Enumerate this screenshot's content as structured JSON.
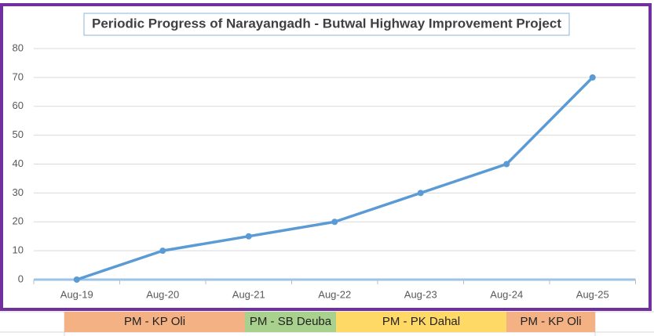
{
  "chart_data": {
    "type": "line",
    "title": "Periodic Progress of Narayangadh - Butwal Highway Improvement Project",
    "categories": [
      "Aug-19",
      "Aug-20",
      "Aug-21",
      "Aug-22",
      "Aug-23",
      "Aug-24",
      "Aug-25"
    ],
    "values": [
      0,
      10,
      15,
      20,
      30,
      40,
      70
    ],
    "color": "#5b9bd5",
    "ylim": [
      0,
      80
    ],
    "yticks": [
      0,
      10,
      20,
      30,
      40,
      50,
      60,
      70,
      80
    ],
    "grid": true,
    "periods": [
      {
        "label": "PM - KP Oli",
        "color": "#f4b183"
      },
      {
        "label": "PM - SB Deuba",
        "color": "#a9d18e"
      },
      {
        "label": "PM - PK Dahal",
        "color": "#ffd966"
      },
      {
        "label": "PM - KP Oli",
        "color": "#f4b183"
      }
    ]
  }
}
